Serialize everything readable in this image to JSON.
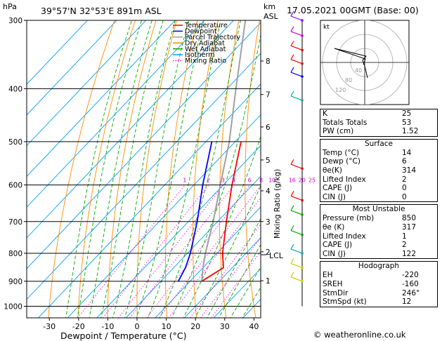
{
  "header": {
    "pressure_unit": "hPa",
    "location": "39°57'N  32°53'E  891m  ASL",
    "km_label": "km",
    "asl_label": "ASL",
    "date": "17.05.2021  00GMT  (Base: 00)"
  },
  "legend": {
    "items": [
      {
        "label": "Temperature",
        "color": "#ff0000",
        "dash": "solid"
      },
      {
        "label": "Dewpoint",
        "color": "#0000ff",
        "dash": "solid"
      },
      {
        "label": "Parcel Trajectory",
        "color": "#a0a0a0",
        "dash": "solid"
      },
      {
        "label": "Dry Adiabat",
        "color": "#ff8c00",
        "dash": "solid"
      },
      {
        "label": "Wet Adiabat",
        "color": "#00aa00",
        "dash": "solid"
      },
      {
        "label": "Isotherm",
        "color": "#00a0ff",
        "dash": "solid"
      },
      {
        "label": "Mixing Ratio",
        "color": "#ff00ff",
        "dash": "dotted"
      }
    ]
  },
  "chart_data": {
    "type": "line",
    "xlabel": "Dewpoint / Temperature (°C)",
    "ylabel": "hPa",
    "mixing_ratio_axis_label": "Mixing Ratio (g/kg)",
    "x_ticks": [
      -30,
      -20,
      -10,
      0,
      10,
      20,
      30,
      40
    ],
    "xlim": [
      -38,
      43
    ],
    "pressure_levels": [
      300,
      400,
      500,
      600,
      700,
      800,
      900,
      1000
    ],
    "pressure_range": [
      300,
      1050
    ],
    "km_ticks": [
      {
        "km": "8",
        "p": 356
      },
      {
        "km": "7",
        "p": 410
      },
      {
        "km": "6",
        "p": 470
      },
      {
        "km": "5",
        "p": 540
      },
      {
        "km": "4",
        "p": 615
      },
      {
        "km": "3",
        "p": 700
      },
      {
        "km": "2",
        "p": 795
      },
      {
        "km": "1",
        "p": 898
      }
    ],
    "lcl_label": "LCL",
    "lcl_pressure": 805,
    "mixing_ratio_labels": [
      "1",
      "2",
      "3",
      "4",
      "6",
      "8",
      "10",
      "16",
      "20",
      "25"
    ],
    "mixing_ratio_values": [
      1,
      2,
      3,
      4,
      6,
      8,
      10,
      16,
      20,
      25
    ],
    "series": [
      {
        "name": "Temperature",
        "color": "#ff0000",
        "points": [
          [
            900,
            14
          ],
          [
            850,
            17
          ],
          [
            800,
            12
          ],
          [
            700,
            3
          ],
          [
            600,
            -7
          ],
          [
            500,
            -18
          ]
        ]
      },
      {
        "name": "Dewpoint",
        "color": "#0000ff",
        "points": [
          [
            900,
            6
          ],
          [
            850,
            4
          ],
          [
            800,
            1
          ],
          [
            700,
            -7
          ],
          [
            600,
            -17
          ],
          [
            500,
            -28
          ]
        ]
      },
      {
        "name": "Parcel Trajectory",
        "color": "#a0a0a0",
        "points": [
          [
            900,
            14
          ],
          [
            850,
            10
          ],
          [
            805,
            6.5
          ],
          [
            700,
            -1.5
          ],
          [
            600,
            -11
          ],
          [
            500,
            -22
          ],
          [
            400,
            -37
          ],
          [
            300,
            -56
          ]
        ]
      }
    ]
  },
  "hodograph": {
    "label": "kt",
    "ring_labels": [
      "40",
      "80",
      "120"
    ]
  },
  "indices": {
    "rows": [
      {
        "label": "K",
        "value": "25"
      },
      {
        "label": "Totals Totals",
        "value": "53"
      },
      {
        "label": "PW (cm)",
        "value": "1.52"
      }
    ]
  },
  "surface": {
    "title": "Surface",
    "rows": [
      {
        "label": "Temp (°C)",
        "value": "14"
      },
      {
        "label": "Dewp (°C)",
        "value": "6"
      },
      {
        "label": "θe(K)",
        "value": "314"
      },
      {
        "label": "Lifted Index",
        "value": "2"
      },
      {
        "label": "CAPE (J)",
        "value": "0"
      },
      {
        "label": "CIN (J)",
        "value": "0"
      }
    ]
  },
  "most_unstable": {
    "title": "Most Unstable",
    "rows": [
      {
        "label": "Pressure (mb)",
        "value": "850"
      },
      {
        "label": "θe (K)",
        "value": "317"
      },
      {
        "label": "Lifted Index",
        "value": "1"
      },
      {
        "label": "CAPE (J)",
        "value": "2"
      },
      {
        "label": "CIN (J)",
        "value": "122"
      }
    ]
  },
  "hodograph_box": {
    "title": "Hodograph",
    "rows": [
      {
        "label": "EH",
        "value": "-220"
      },
      {
        "label": "SREH",
        "value": "-160"
      },
      {
        "label": "StmDir",
        "value": "246°"
      },
      {
        "label": "StmSpd (kt)",
        "value": "12"
      }
    ]
  },
  "footer": {
    "copyright": "© weatheronline.co.uk"
  }
}
